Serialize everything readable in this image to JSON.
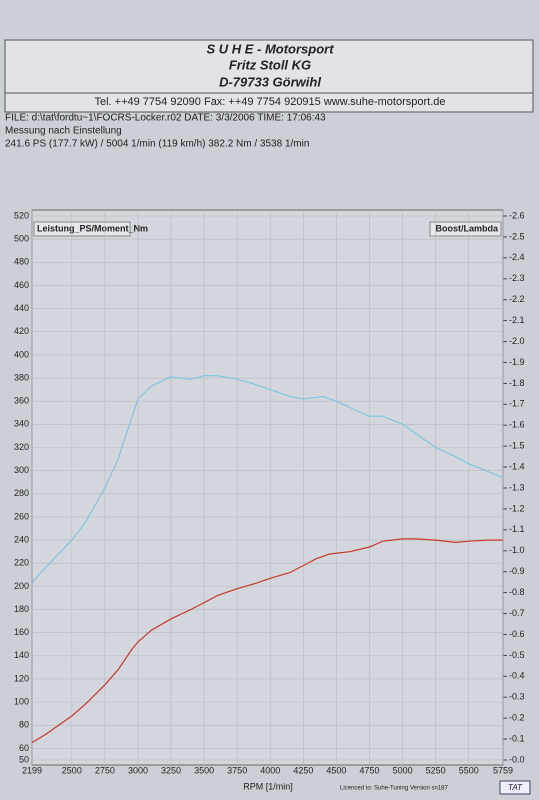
{
  "header": {
    "company": "S U H E - Motorsport",
    "name": "Fritz Stoll KG",
    "address": "D-79733 Görwihl",
    "contact": "Tel. ++49 7754 92090   Fax: ++49 7754 920915   www.suhe-motorsport.de"
  },
  "info": {
    "file": "FILE: d:\\tat\\fordtu~1\\FOCRS-Locker.r02  DATE: 3/3/2006  TIME: 17:06:43",
    "note": "Messung nach Einstellung",
    "result": "241.6 PS  (177.7 kW) / 5004 1/min (119 km/h)     382.2 Nm / 3538 1/min"
  },
  "chart_data": {
    "type": "line",
    "left_label": "Leistung_PS/Moment_Nm",
    "right_label": "Boost/Lambda",
    "xlabel": "RPM  [1/min]",
    "footer": "Licenced to: Suhe-Tuning  Version sn187",
    "logo": "TAT",
    "grid": true,
    "xlim": [
      2199,
      5759
    ],
    "xticks": [
      2199,
      2500,
      2750,
      3000,
      3250,
      3500,
      3750,
      4000,
      4250,
      4500,
      4750,
      5000,
      5250,
      5500,
      5759
    ],
    "ylim": [
      50,
      520
    ],
    "yticks": [
      50,
      60,
      80,
      100,
      120,
      140,
      160,
      180,
      200,
      220,
      240,
      260,
      280,
      300,
      320,
      340,
      360,
      380,
      400,
      420,
      440,
      460,
      480,
      500,
      520
    ],
    "y2lim": [
      0,
      -2.6
    ],
    "y2ticks": [
      {
        "value": 0,
        "label": "-0.0"
      },
      -0.1,
      -0.2,
      -0.3,
      -0.4,
      -0.5,
      -0.6,
      -0.7,
      -0.8,
      -0.9,
      {
        "value": -1,
        "label": "-1.0"
      },
      -1.1,
      -1.2,
      -1.3,
      -1.4,
      -1.5,
      -1.6,
      -1.7,
      -1.8,
      -1.9,
      {
        "value": -2,
        "label": "-2.0"
      },
      -2.1,
      -2.2,
      -2.3,
      -2.4,
      -2.5,
      -2.6
    ],
    "series": [
      {
        "color": "#7ec6e0",
        "x": [
          2199,
          2250,
          2350,
          2500,
          2600,
          2750,
          2850,
          2950,
          3000,
          3100,
          3250,
          3400,
          3500,
          3600,
          3750,
          3900,
          4000,
          4150,
          4250,
          4400,
          4500,
          4650,
          4750,
          4850,
          5000,
          5150,
          5250,
          5400,
          5500,
          5650,
          5759
        ],
        "values": [
          203,
          210,
          222,
          240,
          255,
          285,
          310,
          345,
          362,
          373,
          381,
          379,
          382,
          382,
          379,
          374,
          370,
          364,
          362,
          364,
          360,
          352,
          347,
          347,
          340,
          328,
          320,
          312,
          306,
          299,
          294
        ]
      },
      {
        "color": "#c8382c",
        "x": [
          2199,
          2300,
          2400,
          2500,
          2600,
          2750,
          2850,
          2950,
          3000,
          3100,
          3250,
          3400,
          3500,
          3600,
          3750,
          3900,
          4000,
          4150,
          4250,
          4350,
          4450,
          4600,
          4750,
          4850,
          5000,
          5100,
          5250,
          5400,
          5500,
          5650,
          5759
        ],
        "values": [
          65,
          72,
          80,
          88,
          98,
          115,
          128,
          145,
          152,
          162,
          172,
          180,
          186,
          192,
          198,
          203,
          207,
          212,
          218,
          224,
          228,
          230,
          234,
          239,
          241,
          241,
          240,
          238,
          239,
          240,
          240
        ]
      }
    ]
  }
}
